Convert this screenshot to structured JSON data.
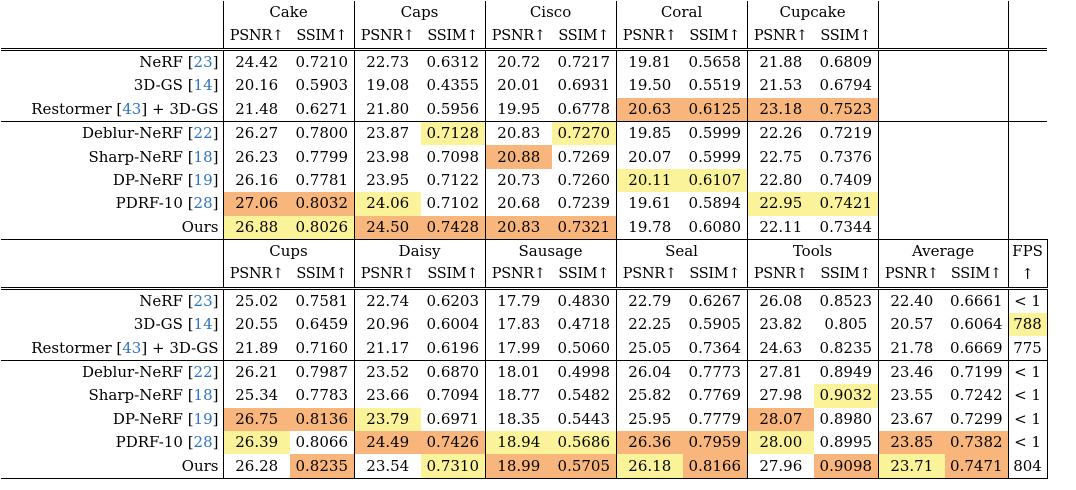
{
  "blocks": [
    {
      "scenes": [
        "Cake",
        "Caps",
        "Cisco",
        "Coral",
        "Cupcake",
        ""
      ],
      "metric_labels": [
        "PSNR↑",
        "SSIM↑"
      ],
      "fps_label": "",
      "fps_sub": "",
      "groups": [
        [
          {
            "method": "NeRF",
            "ref": "23",
            "cells": [
              "24.42",
              "0.7210",
              "22.73",
              "0.6312",
              "20.72",
              "0.7217",
              "19.81",
              "0.5658",
              "21.88",
              "0.6809",
              "",
              ""
            ],
            "hl": [
              0,
              0,
              0,
              0,
              0,
              0,
              0,
              0,
              0,
              0,
              0,
              0
            ],
            "fps": "",
            "fps_hl": 0
          },
          {
            "method": "3D-GS",
            "ref": "14",
            "cells": [
              "20.16",
              "0.5903",
              "19.08",
              "0.4355",
              "20.01",
              "0.6931",
              "19.50",
              "0.5519",
              "21.53",
              "0.6794",
              "",
              ""
            ],
            "hl": [
              0,
              0,
              0,
              0,
              0,
              0,
              0,
              0,
              0,
              0,
              0,
              0
            ],
            "fps": "",
            "fps_hl": 0
          },
          {
            "method": "Restormer",
            "ref": "43",
            "suffix": " + 3D-GS",
            "cells": [
              "21.48",
              "0.6271",
              "21.80",
              "0.5956",
              "19.95",
              "0.6778",
              "20.63",
              "0.6125",
              "23.18",
              "0.7523",
              "",
              ""
            ],
            "hl": [
              0,
              0,
              0,
              0,
              0,
              0,
              1,
              1,
              1,
              1,
              0,
              0
            ],
            "fps": "",
            "fps_hl": 0
          }
        ],
        [
          {
            "method": "Deblur-NeRF",
            "ref": "22",
            "cells": [
              "26.27",
              "0.7800",
              "23.87",
              "0.7128",
              "20.83",
              "0.7270",
              "19.85",
              "0.5999",
              "22.26",
              "0.7219",
              "",
              ""
            ],
            "hl": [
              0,
              0,
              0,
              2,
              0,
              2,
              0,
              0,
              0,
              0,
              0,
              0
            ],
            "fps": "",
            "fps_hl": 0
          },
          {
            "method": "Sharp-NeRF",
            "ref": "18",
            "cells": [
              "26.23",
              "0.7799",
              "23.98",
              "0.7098",
              "20.88",
              "0.7269",
              "20.07",
              "0.5999",
              "22.75",
              "0.7376",
              "",
              ""
            ],
            "hl": [
              0,
              0,
              0,
              0,
              1,
              0,
              0,
              0,
              0,
              0,
              0,
              0
            ],
            "fps": "",
            "fps_hl": 0
          },
          {
            "method": "DP-NeRF",
            "ref": "19",
            "cells": [
              "26.16",
              "0.7781",
              "23.95",
              "0.7122",
              "20.73",
              "0.7260",
              "20.11",
              "0.6107",
              "22.80",
              "0.7409",
              "",
              ""
            ],
            "hl": [
              0,
              0,
              0,
              0,
              0,
              0,
              2,
              2,
              0,
              0,
              0,
              0
            ],
            "fps": "",
            "fps_hl": 0
          },
          {
            "method": "PDRF-10",
            "ref": "28",
            "cells": [
              "27.06",
              "0.8032",
              "24.06",
              "0.7102",
              "20.68",
              "0.7239",
              "19.61",
              "0.5894",
              "22.95",
              "0.7421",
              "",
              ""
            ],
            "hl": [
              1,
              1,
              2,
              0,
              0,
              0,
              0,
              0,
              2,
              2,
              0,
              0
            ],
            "fps": "",
            "fps_hl": 0
          },
          {
            "method": "Ours",
            "ref": "",
            "cells": [
              "26.88",
              "0.8026",
              "24.50",
              "0.7428",
              "20.83",
              "0.7321",
              "19.78",
              "0.6080",
              "22.11",
              "0.7344",
              "",
              ""
            ],
            "hl": [
              2,
              2,
              1,
              1,
              1,
              1,
              0,
              0,
              0,
              0,
              0,
              0
            ],
            "fps": "",
            "fps_hl": 0
          }
        ]
      ]
    },
    {
      "scenes": [
        "Cups",
        "Daisy",
        "Sausage",
        "Seal",
        "Tools",
        "Average"
      ],
      "metric_labels": [
        "PSNR↑",
        "SSIM↑"
      ],
      "fps_label": "FPS",
      "fps_sub": "↑",
      "groups": [
        [
          {
            "method": "NeRF",
            "ref": "23",
            "cells": [
              "25.02",
              "0.7581",
              "22.74",
              "0.6203",
              "17.79",
              "0.4830",
              "22.79",
              "0.6267",
              "26.08",
              "0.8523",
              "22.40",
              "0.6661"
            ],
            "hl": [
              0,
              0,
              0,
              0,
              0,
              0,
              0,
              0,
              0,
              0,
              0,
              0
            ],
            "fps": "< 1",
            "fps_hl": 0
          },
          {
            "method": "3D-GS",
            "ref": "14",
            "cells": [
              "20.55",
              "0.6459",
              "20.96",
              "0.6004",
              "17.83",
              "0.4718",
              "22.25",
              "0.5905",
              "23.82",
              "0.805",
              "20.57",
              "0.6064"
            ],
            "hl": [
              0,
              0,
              0,
              0,
              0,
              0,
              0,
              0,
              0,
              0,
              0,
              0
            ],
            "fps": "788",
            "fps_hl": 2
          },
          {
            "method": "Restormer",
            "ref": "43",
            "suffix": " + 3D-GS",
            "cells": [
              "21.89",
              "0.7160",
              "21.17",
              "0.6196",
              "17.99",
              "0.5060",
              "25.05",
              "0.7364",
              "24.63",
              "0.8235",
              "21.78",
              "0.6669"
            ],
            "hl": [
              0,
              0,
              0,
              0,
              0,
              0,
              0,
              0,
              0,
              0,
              0,
              0
            ],
            "fps": "775",
            "fps_hl": 0
          }
        ],
        [
          {
            "method": "Deblur-NeRF",
            "ref": "22",
            "cells": [
              "26.21",
              "0.7987",
              "23.52",
              "0.6870",
              "18.01",
              "0.4998",
              "26.04",
              "0.7773",
              "27.81",
              "0.8949",
              "23.46",
              "0.7199"
            ],
            "hl": [
              0,
              0,
              0,
              0,
              0,
              0,
              0,
              0,
              0,
              0,
              0,
              0
            ],
            "fps": "< 1",
            "fps_hl": 0
          },
          {
            "method": "Sharp-NeRF",
            "ref": "18",
            "cells": [
              "25.34",
              "0.7783",
              "23.66",
              "0.7094",
              "18.77",
              "0.5482",
              "25.82",
              "0.7769",
              "27.98",
              "0.9032",
              "23.55",
              "0.7242"
            ],
            "hl": [
              0,
              0,
              0,
              0,
              0,
              0,
              0,
              0,
              0,
              2,
              0,
              0
            ],
            "fps": "< 1",
            "fps_hl": 0
          },
          {
            "method": "DP-NeRF",
            "ref": "19",
            "cells": [
              "26.75",
              "0.8136",
              "23.79",
              "0.6971",
              "18.35",
              "0.5443",
              "25.95",
              "0.7779",
              "28.07",
              "0.8980",
              "23.67",
              "0.7299"
            ],
            "hl": [
              1,
              1,
              2,
              0,
              0,
              0,
              0,
              0,
              1,
              0,
              0,
              0
            ],
            "fps": "< 1",
            "fps_hl": 0
          },
          {
            "method": "PDRF-10",
            "ref": "28",
            "cells": [
              "26.39",
              "0.8066",
              "24.49",
              "0.7426",
              "18.94",
              "0.5686",
              "26.36",
              "0.7959",
              "28.00",
              "0.8995",
              "23.85",
              "0.7382"
            ],
            "hl": [
              2,
              0,
              1,
              1,
              2,
              2,
              1,
              1,
              2,
              0,
              1,
              1
            ],
            "fps": "< 1",
            "fps_hl": 0
          },
          {
            "method": "Ours",
            "ref": "",
            "cells": [
              "26.28",
              "0.8235",
              "23.54",
              "0.7310",
              "18.99",
              "0.5705",
              "26.18",
              "0.8166",
              "27.96",
              "0.9098",
              "23.71",
              "0.7471"
            ],
            "hl": [
              0,
              1,
              0,
              2,
              1,
              1,
              2,
              1,
              0,
              1,
              2,
              1
            ],
            "fps": "804",
            "fps_hl": 0
          }
        ]
      ]
    }
  ]
}
